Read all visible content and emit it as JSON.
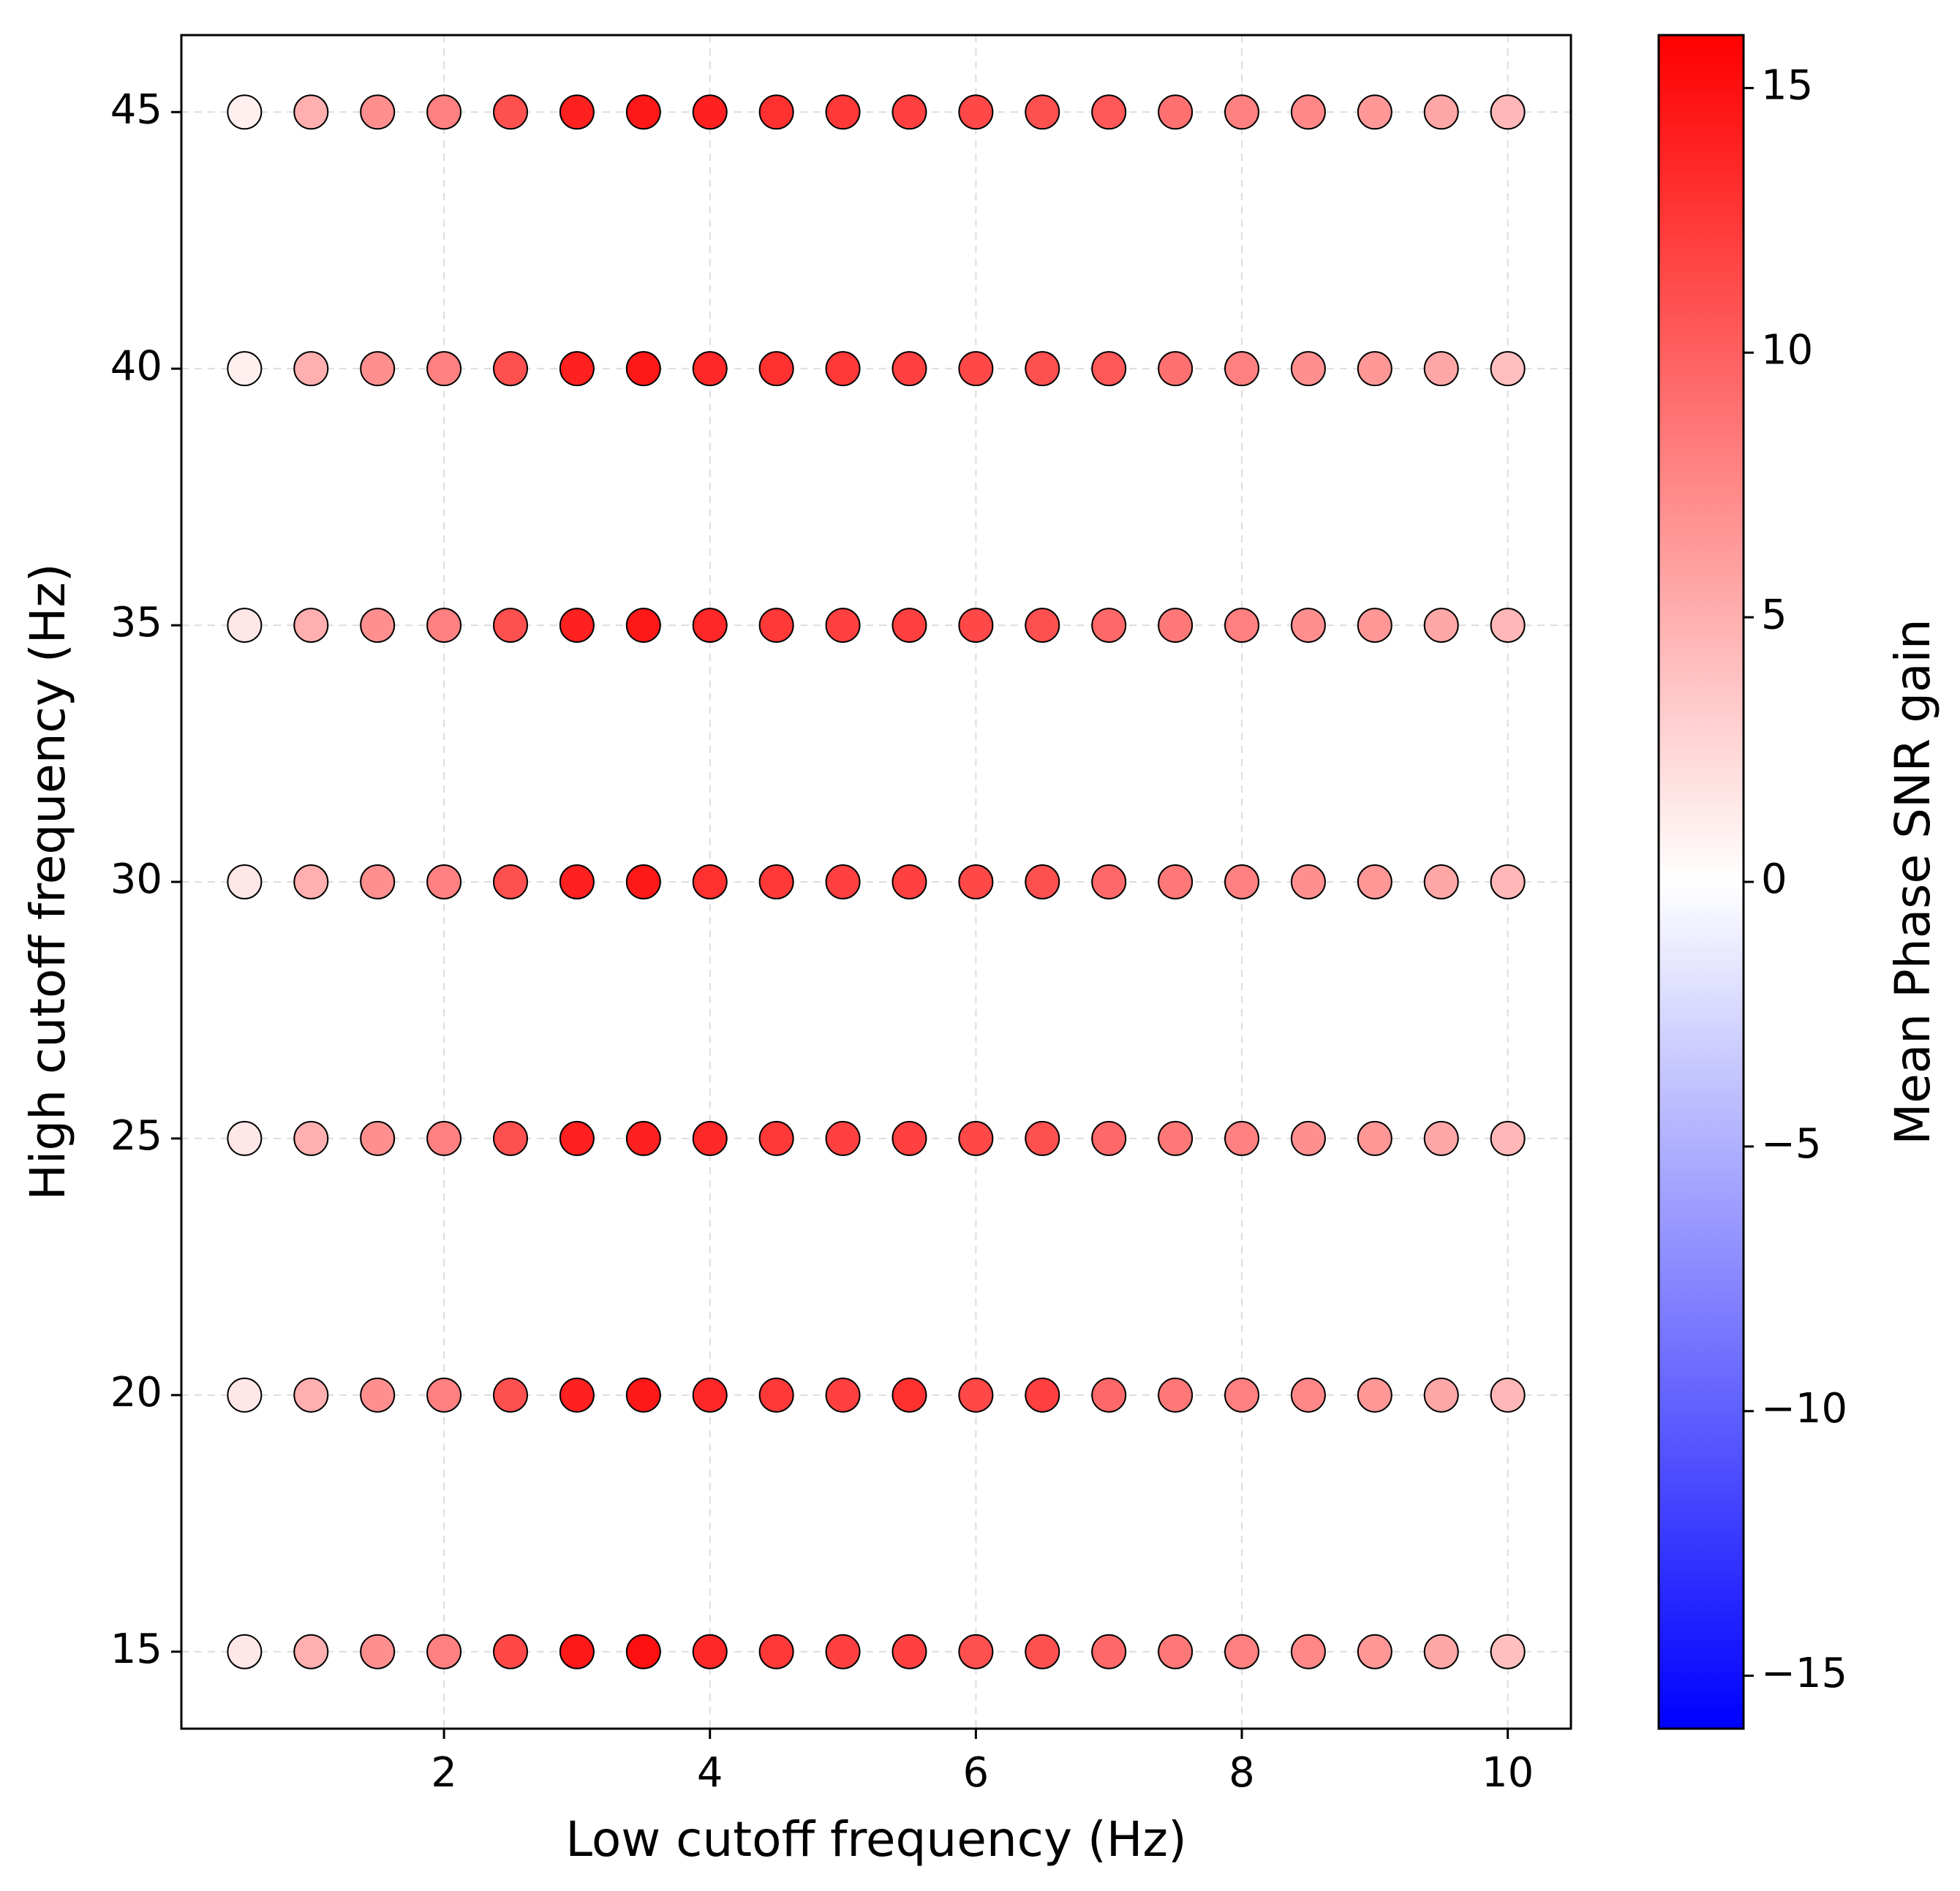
{
  "chart_data": {
    "type": "scatter",
    "xlabel": "Low cutoff frequency (Hz)",
    "ylabel": "High cutoff frequency (Hz)",
    "x": [
      0.5,
      1,
      1.5,
      2,
      2.5,
      3,
      3.5,
      4,
      4.5,
      5,
      5.5,
      6,
      6.5,
      7,
      7.5,
      8,
      8.5,
      9,
      9.5,
      10,
      0.5,
      1,
      1.5,
      2,
      2.5,
      3,
      3.5,
      4,
      4.5,
      5,
      5.5,
      6,
      6.5,
      7,
      7.5,
      8,
      8.5,
      9,
      9.5,
      10,
      0.5,
      1,
      1.5,
      2,
      2.5,
      3,
      3.5,
      4,
      4.5,
      5,
      5.5,
      6,
      6.5,
      7,
      7.5,
      8,
      8.5,
      9,
      9.5,
      10,
      0.5,
      1,
      1.5,
      2,
      2.5,
      3,
      3.5,
      4,
      4.5,
      5,
      5.5,
      6,
      6.5,
      7,
      7.5,
      8,
      8.5,
      9,
      9.5,
      10,
      0.5,
      1,
      1.5,
      2,
      2.5,
      3,
      3.5,
      4,
      4.5,
      5,
      5.5,
      6,
      6.5,
      7,
      7.5,
      8,
      8.5,
      9,
      9.5,
      10,
      0.5,
      1,
      1.5,
      2,
      2.5,
      3,
      3.5,
      4,
      4.5,
      5,
      5.5,
      6,
      6.5,
      7,
      7.5,
      8,
      8.5,
      9,
      9.5,
      10,
      0.5,
      1,
      1.5,
      2,
      2.5,
      3,
      3.5,
      4,
      4.5,
      5,
      5.5,
      6,
      6.5,
      7,
      7.5,
      8,
      8.5,
      9,
      9.5,
      10
    ],
    "y": [
      15,
      15,
      15,
      15,
      15,
      15,
      15,
      15,
      15,
      15,
      15,
      15,
      15,
      15,
      15,
      15,
      15,
      15,
      15,
      15,
      20,
      20,
      20,
      20,
      20,
      20,
      20,
      20,
      20,
      20,
      20,
      20,
      20,
      20,
      20,
      20,
      20,
      20,
      20,
      20,
      25,
      25,
      25,
      25,
      25,
      25,
      25,
      25,
      25,
      25,
      25,
      25,
      25,
      25,
      25,
      25,
      25,
      25,
      25,
      25,
      30,
      30,
      30,
      30,
      30,
      30,
      30,
      30,
      30,
      30,
      30,
      30,
      30,
      30,
      30,
      30,
      30,
      30,
      30,
      30,
      35,
      35,
      35,
      35,
      35,
      35,
      35,
      35,
      35,
      35,
      35,
      35,
      35,
      35,
      35,
      35,
      35,
      35,
      35,
      35,
      40,
      40,
      40,
      40,
      40,
      40,
      40,
      40,
      40,
      40,
      40,
      40,
      40,
      40,
      40,
      40,
      40,
      40,
      40,
      40,
      45,
      45,
      45,
      45,
      45,
      45,
      45,
      45,
      45,
      45,
      45,
      45,
      45,
      45,
      45,
      45,
      45,
      45,
      45,
      45
    ],
    "c": [
      1.5,
      5,
      7,
      8,
      11.5,
      14.5,
      15,
      13.5,
      12.5,
      12,
      12,
      11,
      11,
      9.5,
      8.5,
      8,
      7.5,
      6.5,
      5.5,
      4,
      1.5,
      5,
      7,
      8,
      11,
      14,
      14.5,
      13.5,
      12.5,
      12,
      13,
      11.5,
      12,
      9.5,
      8.5,
      8,
      7.5,
      6.5,
      5.5,
      4.5,
      1.5,
      5,
      7,
      8,
      11,
      14,
      14,
      13.5,
      12.5,
      12,
      12,
      11.5,
      11,
      9.5,
      8.5,
      8,
      7,
      6.5,
      5.5,
      4.5,
      1.5,
      5,
      7,
      8,
      11,
      14,
      14.5,
      13,
      12.5,
      12,
      12,
      11.5,
      11,
      9.5,
      8.5,
      8,
      7,
      6.5,
      5.5,
      4.5,
      1.5,
      5,
      7,
      8,
      11,
      14,
      14.5,
      13.5,
      12.5,
      12,
      12,
      11.5,
      11,
      9.5,
      8.5,
      8,
      7,
      6.5,
      5.5,
      4.5,
      1,
      5,
      7,
      8,
      11,
      14,
      14.5,
      13.5,
      13,
      12.5,
      12,
      11.5,
      11,
      10.5,
      9,
      8,
      7,
      6.5,
      5.5,
      4,
      1,
      5,
      7,
      8,
      11,
      14,
      14.5,
      14,
      13,
      12.5,
      12,
      11.5,
      11,
      10.5,
      9,
      8,
      7.5,
      6.5,
      5.5,
      4.5
    ],
    "xlim": [
      0.025,
      10.475
    ],
    "ylim": [
      13.5,
      46.5
    ],
    "xticks": [
      2,
      4,
      6,
      8,
      10
    ],
    "yticks": [
      15,
      20,
      25,
      30,
      35,
      40,
      45
    ],
    "grid": true,
    "colorbar": {
      "label": "Mean Phase SNR gain",
      "clim": [
        -16,
        16
      ],
      "cmap": [
        "#0000ff",
        "#ffffff",
        "#ff0000"
      ],
      "ticks": [
        {
          "value": -15,
          "label": "−15"
        },
        {
          "value": -10,
          "label": "−10"
        },
        {
          "value": -5,
          "label": "−5"
        },
        0,
        5,
        10,
        15
      ]
    }
  }
}
